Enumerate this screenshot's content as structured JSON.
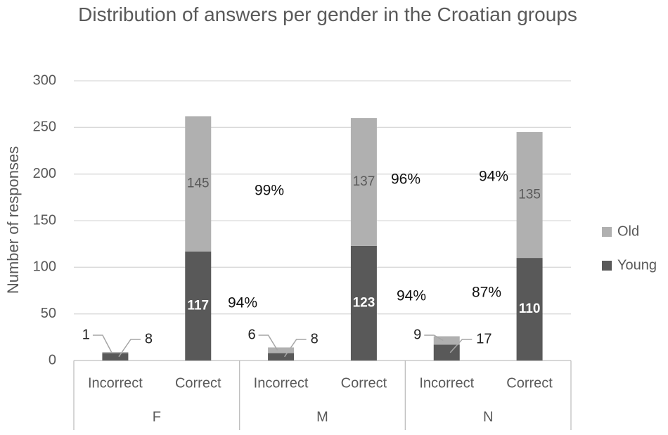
{
  "chart_data": {
    "type": "stacked_bar",
    "title": "Distribution of answers per gender in the Croatian groups",
    "y_label": "Number of responses",
    "categories": [
      "Incorrect",
      "Correct",
      "Incorrect",
      "Correct",
      "Incorrect",
      "Correct"
    ],
    "groups": [
      "F",
      "M",
      "N"
    ],
    "series": [
      {
        "name": "Young",
        "color": "#595959",
        "values": [
          8,
          117,
          8,
          123,
          17,
          110
        ]
      },
      {
        "name": "Old",
        "color": "#b0b0b0",
        "values": [
          1,
          145,
          6,
          137,
          9,
          135
        ]
      }
    ],
    "annotations": [
      "99%",
      "94%",
      "96%",
      "94%",
      "94%",
      "87%"
    ],
    "ylim": [
      0,
      300
    ],
    "yticks": [
      0,
      50,
      100,
      150,
      200,
      250,
      300
    ],
    "grid": true,
    "legend": "right"
  }
}
